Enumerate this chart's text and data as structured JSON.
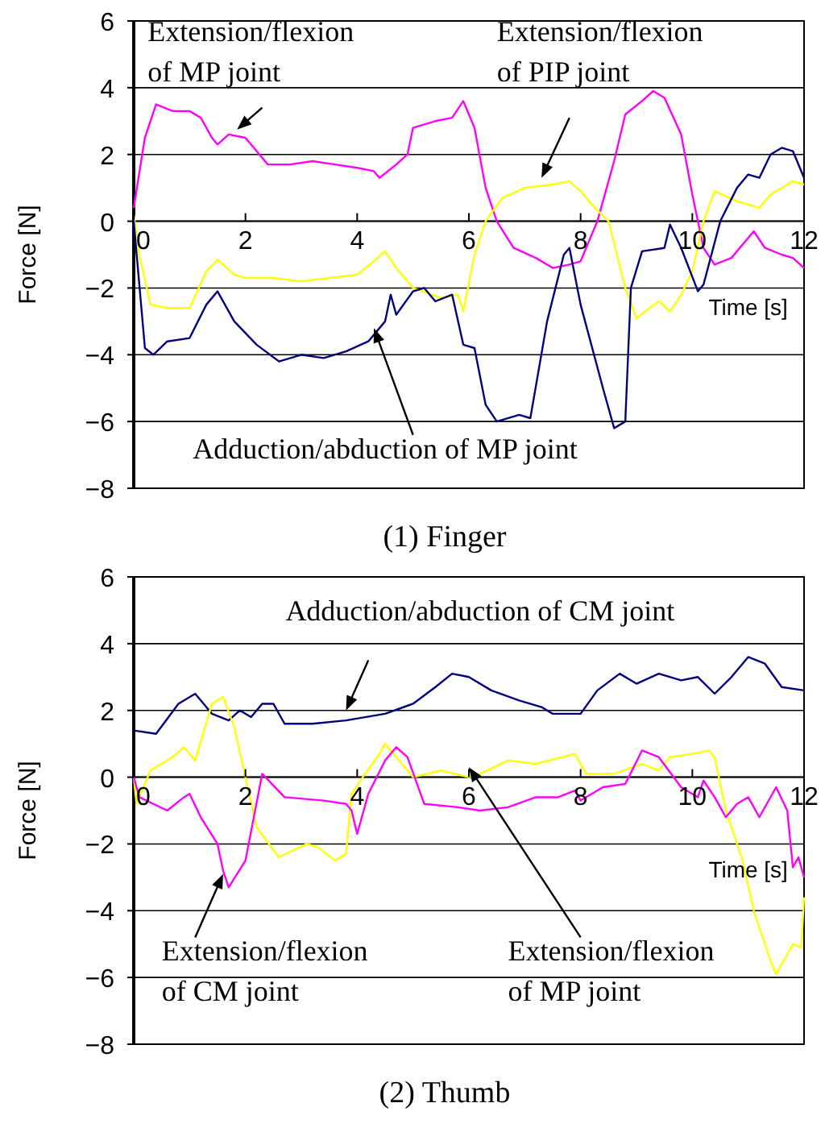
{
  "chart_data": [
    {
      "type": "line",
      "title": "(1) Finger",
      "xlabel": "Time [s]",
      "ylabel": "Force [N]",
      "xlim": [
        0,
        12
      ],
      "ylim": [
        -8,
        6
      ],
      "xticks": [
        0,
        2,
        4,
        6,
        8,
        10,
        12
      ],
      "yticks": [
        -8,
        -6,
        -4,
        -2,
        0,
        2,
        4,
        6
      ],
      "grid": "y",
      "line_style": "solid",
      "annotations": [
        "Extension/flexion\nof MP joint",
        "Extension/flexion\nof PIP joint",
        "Adduction/abduction of MP joint"
      ],
      "series": [
        {
          "color": "#ff00ff",
          "x": [
            0,
            0.2,
            0.4,
            0.7,
            1.0,
            1.2,
            1.4,
            1.5,
            1.7,
            2.0,
            2.2,
            2.4,
            2.8,
            3.2,
            3.6,
            4.0,
            4.3,
            4.4,
            4.7,
            4.9,
            5.0,
            5.4,
            5.7,
            5.9,
            6.1,
            6.3,
            6.5,
            6.8,
            7.2,
            7.5,
            7.8,
            8.0,
            8.3,
            8.6,
            8.8,
            9.1,
            9.3,
            9.5,
            9.8,
            10.0,
            10.2,
            10.4,
            10.7,
            11.0,
            11.1,
            11.3,
            11.6,
            11.8,
            12.0
          ],
          "values": [
            0.4,
            2.5,
            3.5,
            3.3,
            3.3,
            3.1,
            2.5,
            2.3,
            2.6,
            2.5,
            2.1,
            1.7,
            1.7,
            1.8,
            1.7,
            1.6,
            1.5,
            1.3,
            1.7,
            2.0,
            2.8,
            3.0,
            3.1,
            3.6,
            2.8,
            1.0,
            0.0,
            -0.8,
            -1.1,
            -1.4,
            -1.3,
            -1.2,
            0.0,
            1.8,
            3.2,
            3.6,
            3.9,
            3.7,
            2.6,
            0.8,
            -0.8,
            -1.3,
            -1.1,
            -0.5,
            -0.3,
            -0.8,
            -1.0,
            -1.1,
            -1.4
          ]
        },
        {
          "color": "#ffff00",
          "x": [
            0,
            0.1,
            0.3,
            0.6,
            1.0,
            1.3,
            1.5,
            1.8,
            2.0,
            2.5,
            3.0,
            3.5,
            4.0,
            4.3,
            4.5,
            4.7,
            5.0,
            5.5,
            5.8,
            5.9,
            6.1,
            6.3,
            6.6,
            7.0,
            7.5,
            7.8,
            8.0,
            8.2,
            8.5,
            8.8,
            9.0,
            9.4,
            9.6,
            9.8,
            10.0,
            10.2,
            10.4,
            10.8,
            11.2,
            11.4,
            11.8,
            12.0
          ],
          "values": [
            0.2,
            -1.0,
            -2.5,
            -2.6,
            -2.6,
            -1.5,
            -1.15,
            -1.6,
            -1.7,
            -1.7,
            -1.8,
            -1.7,
            -1.6,
            -1.2,
            -0.9,
            -1.4,
            -2.0,
            -2.3,
            -2.2,
            -2.7,
            -1.0,
            0.0,
            0.7,
            1.0,
            1.1,
            1.2,
            0.9,
            0.5,
            0.0,
            -2.0,
            -2.9,
            -2.4,
            -2.7,
            -2.2,
            -1.5,
            0.0,
            0.9,
            0.6,
            0.4,
            0.8,
            1.2,
            1.1
          ]
        },
        {
          "color": "#000080",
          "x": [
            0,
            0.2,
            0.35,
            0.6,
            1.0,
            1.3,
            1.5,
            1.8,
            2.2,
            2.6,
            3.0,
            3.4,
            3.8,
            4.2,
            4.5,
            4.6,
            4.7,
            5.0,
            5.2,
            5.4,
            5.7,
            5.9,
            6.1,
            6.3,
            6.5,
            6.9,
            7.1,
            7.4,
            7.7,
            7.8,
            8.0,
            8.4,
            8.6,
            8.8,
            8.9,
            9.1,
            9.5,
            9.6,
            9.8,
            10.1,
            10.2,
            10.5,
            10.8,
            11.0,
            11.2,
            11.4,
            11.6,
            11.8,
            12.0
          ],
          "values": [
            0,
            -3.8,
            -4.0,
            -3.6,
            -3.5,
            -2.5,
            -2.1,
            -3.0,
            -3.7,
            -4.2,
            -4.0,
            -4.1,
            -3.9,
            -3.6,
            -3.0,
            -2.2,
            -2.8,
            -2.1,
            -2.0,
            -2.4,
            -2.2,
            -3.7,
            -3.8,
            -5.5,
            -6.0,
            -5.8,
            -5.9,
            -3.0,
            -1.0,
            -0.8,
            -2.5,
            -5.0,
            -6.2,
            -6.0,
            -2.0,
            -0.9,
            -0.8,
            -0.1,
            -0.8,
            -2.1,
            -1.9,
            0.0,
            1.0,
            1.4,
            1.3,
            2.0,
            2.2,
            2.1,
            1.3
          ]
        }
      ]
    },
    {
      "type": "line",
      "title": "(2) Thumb",
      "xlabel": "Time [s]",
      "ylabel": "Force [N]",
      "xlim": [
        0,
        12
      ],
      "ylim": [
        -8,
        6
      ],
      "xticks": [
        0,
        2,
        4,
        6,
        8,
        10,
        12
      ],
      "yticks": [
        -8,
        -6,
        -4,
        -2,
        0,
        2,
        4,
        6
      ],
      "grid": "y",
      "line_style": "solid",
      "annotations": [
        "Adduction/abduction of CM joint",
        "Extension/flexion\nof CM joint",
        "Extension/flexion\nof MP joint"
      ],
      "series": [
        {
          "color": "#000080",
          "x": [
            0,
            0.4,
            0.8,
            1.1,
            1.4,
            1.7,
            1.9,
            2.1,
            2.3,
            2.5,
            2.7,
            3.2,
            3.8,
            4.5,
            5.0,
            5.4,
            5.7,
            6.0,
            6.4,
            6.9,
            7.3,
            7.5,
            8.0,
            8.3,
            8.7,
            9.0,
            9.4,
            9.8,
            10.1,
            10.4,
            10.7,
            11.0,
            11.3,
            11.6,
            12.0
          ],
          "values": [
            1.4,
            1.3,
            2.2,
            2.5,
            1.9,
            1.7,
            2.0,
            1.8,
            2.2,
            2.2,
            1.6,
            1.6,
            1.7,
            1.9,
            2.2,
            2.7,
            3.1,
            3.0,
            2.6,
            2.3,
            2.1,
            1.9,
            1.9,
            2.6,
            3.1,
            2.8,
            3.1,
            2.9,
            3.0,
            2.5,
            3.0,
            3.6,
            3.4,
            2.7,
            2.6
          ]
        },
        {
          "color": "#ffff00",
          "x": [
            0,
            0.05,
            0.3,
            0.7,
            0.9,
            1.1,
            1.4,
            1.6,
            1.8,
            2.0,
            2.2,
            2.6,
            3.1,
            3.3,
            3.6,
            3.8,
            3.9,
            4.1,
            4.4,
            4.5,
            4.8,
            5.0,
            5.5,
            6.0,
            6.2,
            6.7,
            7.2,
            7.9,
            8.1,
            8.6,
            9.1,
            9.4,
            9.6,
            10.0,
            10.3,
            10.4,
            10.6,
            10.9,
            11.1,
            11.4,
            11.5,
            11.8,
            11.95,
            12.0
          ],
          "values": [
            0,
            -0.8,
            0.2,
            0.6,
            0.9,
            0.5,
            2.2,
            2.4,
            1.5,
            0,
            -1.5,
            -2.4,
            -2.0,
            -2.1,
            -2.5,
            -2.3,
            -0.5,
            0,
            0.7,
            1.0,
            0.4,
            0,
            0.2,
            0,
            0.1,
            0.5,
            0.4,
            0.7,
            0.1,
            0.1,
            0.4,
            0.2,
            0.6,
            0.7,
            0.8,
            0.6,
            -1.0,
            -2.5,
            -4.0,
            -5.5,
            -5.9,
            -5.0,
            -5.1,
            -3.6
          ]
        },
        {
          "color": "#ff00ff",
          "x": [
            0,
            0.1,
            0.6,
            0.9,
            1.0,
            1.2,
            1.5,
            1.6,
            1.7,
            2.0,
            2.3,
            2.7,
            3.4,
            3.8,
            3.9,
            4.0,
            4.2,
            4.5,
            4.7,
            4.9,
            5.2,
            5.8,
            6.2,
            6.7,
            7.2,
            7.6,
            7.9,
            8.0,
            8.4,
            8.8,
            9.1,
            9.4,
            9.8,
            10.1,
            10.2,
            10.4,
            10.6,
            10.8,
            11.0,
            11.2,
            11.5,
            11.7,
            11.8,
            11.9,
            12.0
          ],
          "values": [
            0,
            -0.6,
            -1.0,
            -0.6,
            -0.5,
            -1.2,
            -2.0,
            -2.8,
            -3.3,
            -2.5,
            0.1,
            -0.6,
            -0.7,
            -0.8,
            -1.0,
            -1.7,
            -0.5,
            0.5,
            0.9,
            0.6,
            -0.8,
            -0.9,
            -1.0,
            -0.9,
            -0.6,
            -0.6,
            -0.4,
            -0.7,
            -0.3,
            -0.2,
            0.8,
            0.6,
            -0.3,
            -0.6,
            -0.1,
            -0.6,
            -1.2,
            -0.8,
            -0.6,
            -1.2,
            -0.3,
            -1.0,
            -2.7,
            -2.4,
            -3.0
          ]
        }
      ]
    }
  ]
}
